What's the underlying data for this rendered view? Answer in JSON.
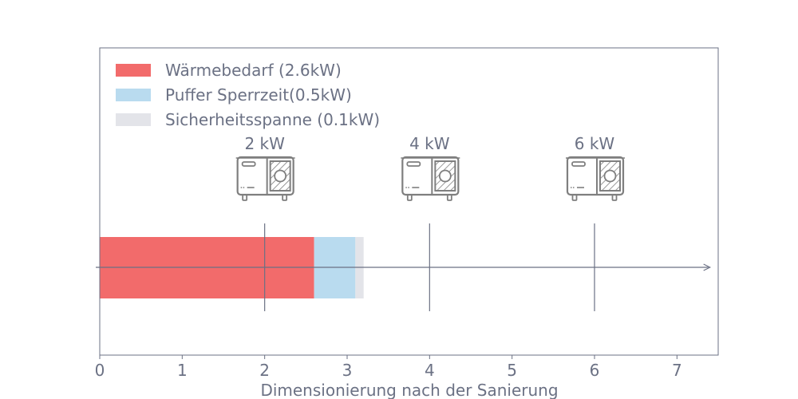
{
  "colors": {
    "heat_demand": "#f26b6b",
    "buffer": "#b9dbef",
    "margin": "#e3e4e9",
    "axis": "#6b7184",
    "text": "#6b7184",
    "icon": "#7f7f7f"
  },
  "chart_data": {
    "type": "bar",
    "orientation": "horizontal",
    "stacked": true,
    "xlabel": "Dimensionierung nach der Sanierung",
    "xlim": [
      0,
      7.5
    ],
    "xticks": [
      "0",
      "1",
      "2",
      "3",
      "4",
      "5",
      "6",
      "7"
    ],
    "grid": false,
    "legend_position": "top-left",
    "series": [
      {
        "name": "Wärmebedarf (2.6kW)",
        "value": 2.6,
        "color_key": "heat_demand"
      },
      {
        "name": "Puffer Sperrzeit(0.5kW)",
        "value": 0.5,
        "color_key": "buffer"
      },
      {
        "name": "Sicherheitsspanne (0.1kW)",
        "value": 0.1,
        "color_key": "margin"
      }
    ],
    "reference_lines": [
      {
        "x": 2,
        "label": "2 kW",
        "icon": "heat-pump-icon"
      },
      {
        "x": 4,
        "label": "4 kW",
        "icon": "heat-pump-icon"
      },
      {
        "x": 6,
        "label": "6 kW",
        "icon": "heat-pump-icon"
      }
    ]
  }
}
